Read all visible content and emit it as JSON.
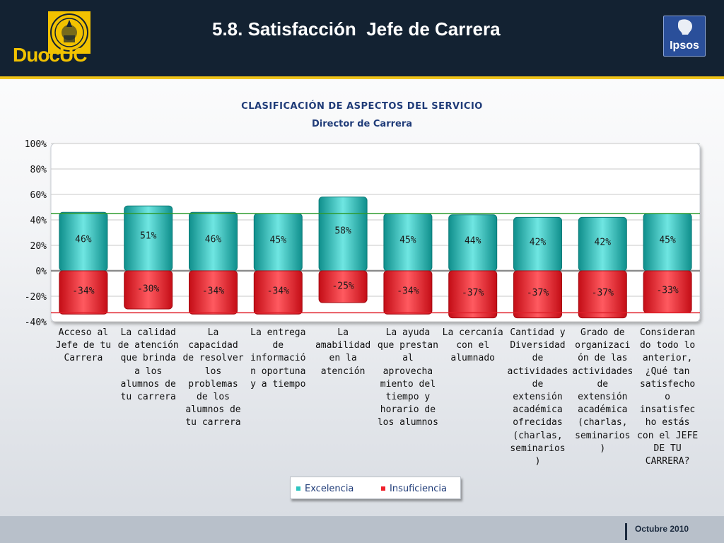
{
  "slide": {
    "title": "5.8. Satisfacción  Jefe de Carrera",
    "footer_date": "Octubre 2010"
  },
  "logos": {
    "duoc": "DuocUC",
    "ipsos": "Ipsos"
  },
  "colors": {
    "header_bg": "#132232",
    "accent_line": "#f0c419",
    "excelencia": "#2ec4c0",
    "insuficiencia": "#f01f2a",
    "title_text": "#1f3b78"
  },
  "chart_data": {
    "type": "bar",
    "title": "CLASIFICACIÓN DE ASPECTOS DEL SERVICIO",
    "subtitle": "Director de Carrera",
    "ylim": [
      -40,
      100
    ],
    "yticks": [
      "100%",
      "80%",
      "60%",
      "40%",
      "20%",
      "0%",
      "-20%",
      "-40%"
    ],
    "ytick_values": [
      100,
      80,
      60,
      40,
      20,
      0,
      -20,
      -40
    ],
    "grid": true,
    "legend_position": "bottom",
    "reference_lines": {
      "excelencia": 45,
      "insuficiencia": -33
    },
    "categories": [
      "Acceso al Jefe de tu Carrera",
      "La calidad de atención que brinda a los alumnos de tu carrera",
      "La capacidad de resolver los problemas de los alumnos de tu carrera",
      "La entrega de informació n oportuna y a tiempo",
      "La amabilidad en la atención",
      "La ayuda que prestan al aprovecha miento del tiempo y horario de los alumnos",
      "La cercanía con el alumnado",
      "Cantidad y Diversidad de actividades de extensión académica ofrecidas (charlas, seminarios )",
      "Grado de organizaci ón de las actividades de extensión académica (charlas, seminarios )",
      "Consideran do todo lo anterior, ¿Qué tan satisfecho o insatisfec ho estás con el JEFE DE TU CARRERA?"
    ],
    "series": [
      {
        "name": "Excelencia",
        "values": [
          46,
          51,
          46,
          45,
          58,
          45,
          44,
          42,
          42,
          45
        ],
        "labels": [
          "46%",
          "51%",
          "46%",
          "45%",
          "58%",
          "45%",
          "44%",
          "42%",
          "42%",
          "45%"
        ]
      },
      {
        "name": "Insuficiencia",
        "values": [
          -34,
          -30,
          -34,
          -34,
          -25,
          -34,
          -37,
          -37,
          -37,
          -33
        ],
        "labels": [
          "-34%",
          "-30%",
          "-34%",
          "-34%",
          "-25%",
          "-34%",
          "-37%",
          "-37%",
          "-37%",
          "-33%"
        ]
      }
    ]
  }
}
